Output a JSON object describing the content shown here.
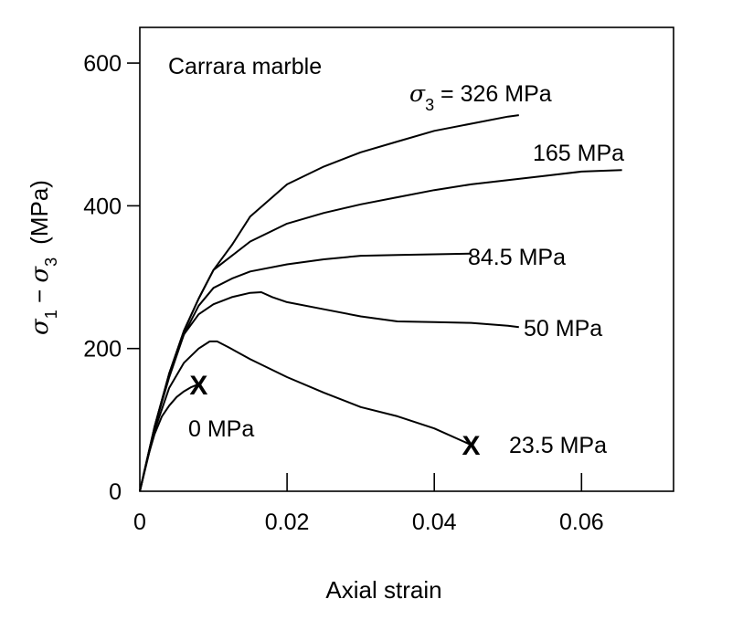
{
  "chart_data": {
    "type": "line",
    "title": "",
    "annotation": "Carrara marble",
    "xlabel": "Axial strain",
    "ylabel": {
      "sym1": "σ",
      "sub1": "1",
      "minus": " − ",
      "sym3": "σ",
      "sub3": "3",
      "unit": "(MPa)"
    },
    "xlim": [
      0,
      0.0725
    ],
    "ylim": [
      0,
      650
    ],
    "xticks": [
      0,
      0.02,
      0.04,
      0.06
    ],
    "xtick_labels": [
      "0",
      "0.02",
      "0.04",
      "0.06"
    ],
    "yticks": [
      0,
      200,
      400,
      600
    ],
    "ytick_labels": [
      "0",
      "200",
      "400",
      "600"
    ],
    "grid": false,
    "legend": "none",
    "sigma3_prefix": {
      "sym": "σ",
      "sub": "3",
      "eq": " = "
    },
    "series": [
      {
        "name": "326 MPa",
        "label_prefix": true,
        "x": [
          0,
          0.002,
          0.004,
          0.006,
          0.008,
          0.01,
          0.0125,
          0.015,
          0.02,
          0.025,
          0.03,
          0.035,
          0.04,
          0.045,
          0.05,
          0.0515
        ],
        "y": [
          0,
          90,
          165,
          225,
          270,
          310,
          345,
          385,
          430,
          455,
          475,
          490,
          505,
          515,
          525,
          527
        ]
      },
      {
        "name": "165 MPa",
        "x": [
          0,
          0.002,
          0.004,
          0.006,
          0.008,
          0.01,
          0.0125,
          0.015,
          0.02,
          0.025,
          0.03,
          0.035,
          0.04,
          0.045,
          0.05,
          0.055,
          0.06,
          0.0655
        ],
        "y": [
          0,
          90,
          165,
          225,
          270,
          310,
          330,
          350,
          375,
          390,
          402,
          412,
          422,
          430,
          436,
          442,
          448,
          450
        ]
      },
      {
        "name": "84.5 MPa",
        "x": [
          0,
          0.002,
          0.004,
          0.006,
          0.008,
          0.01,
          0.0125,
          0.015,
          0.02,
          0.025,
          0.03,
          0.035,
          0.04,
          0.045
        ],
        "y": [
          0,
          90,
          165,
          220,
          260,
          285,
          298,
          308,
          318,
          325,
          330,
          331,
          332,
          333
        ]
      },
      {
        "name": "50 MPa",
        "x": [
          0,
          0.002,
          0.004,
          0.006,
          0.008,
          0.01,
          0.0125,
          0.015,
          0.0165,
          0.018,
          0.02,
          0.025,
          0.03,
          0.035,
          0.04,
          0.045,
          0.05,
          0.0515
        ],
        "y": [
          0,
          90,
          160,
          220,
          248,
          262,
          272,
          278,
          279,
          272,
          265,
          255,
          245,
          238,
          237,
          236,
          232,
          230
        ]
      },
      {
        "name": "23.5 MPa",
        "x": [
          0,
          0.002,
          0.004,
          0.006,
          0.008,
          0.0095,
          0.0105,
          0.012,
          0.015,
          0.02,
          0.025,
          0.03,
          0.035,
          0.04,
          0.045
        ],
        "y": [
          0,
          85,
          145,
          180,
          200,
          210,
          210,
          202,
          185,
          160,
          138,
          118,
          105,
          88,
          65
        ],
        "failure": true
      },
      {
        "name": "0 MPa",
        "x": [
          0,
          0.001,
          0.002,
          0.003,
          0.004,
          0.005,
          0.006,
          0.007,
          0.0075,
          0.008
        ],
        "y": [
          0,
          45,
          80,
          105,
          120,
          132,
          140,
          146,
          148,
          150
        ],
        "failure": true
      }
    ]
  }
}
